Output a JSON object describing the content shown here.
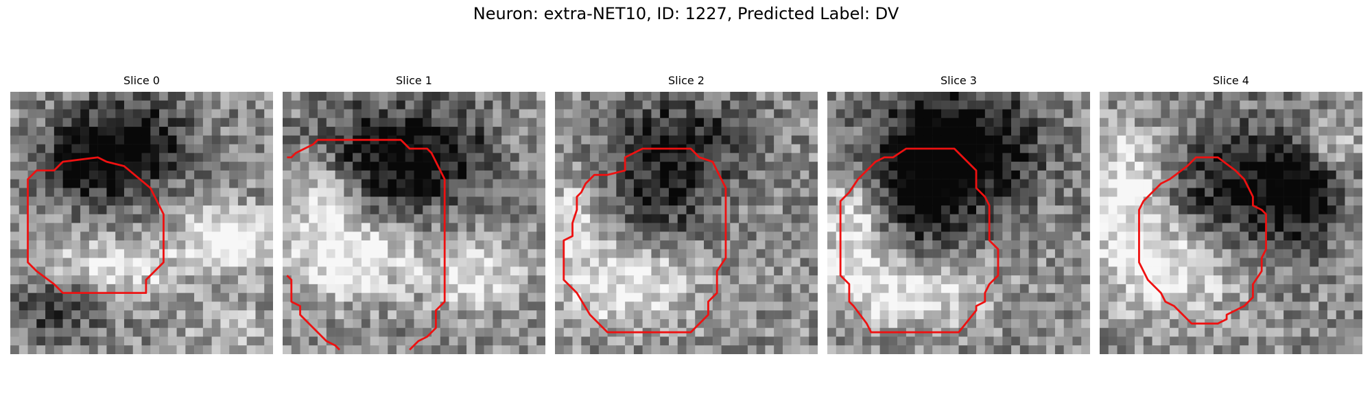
{
  "figure": {
    "title": "Neuron: extra-NET10, ID: 1227, Predicted Label: DV"
  },
  "panels": [
    {
      "title": "Slice 0"
    },
    {
      "title": "Slice 1"
    },
    {
      "title": "Slice 2"
    },
    {
      "title": "Slice 3"
    },
    {
      "title": "Slice 4"
    }
  ],
  "colors": {
    "contour": "#ee1111",
    "colormap": "grayscale"
  }
}
